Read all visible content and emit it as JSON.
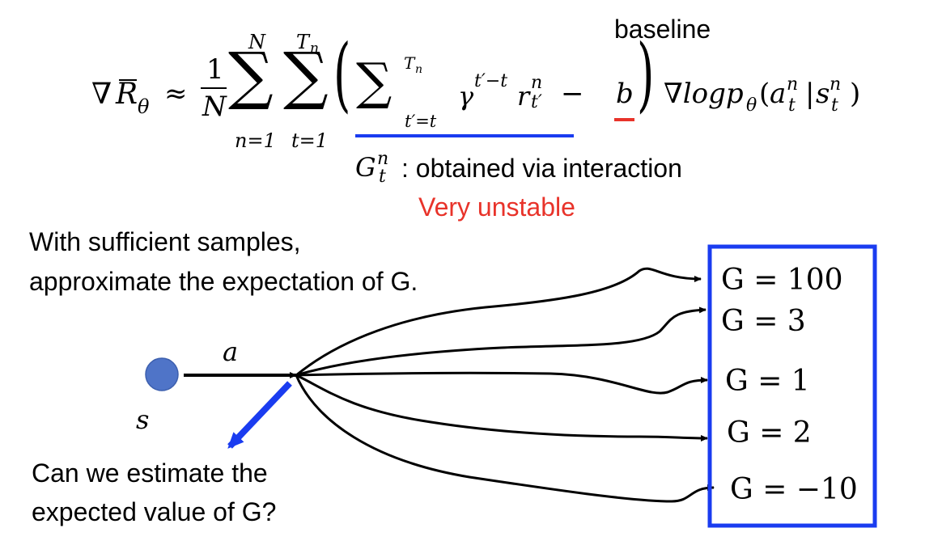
{
  "formula": {
    "nabla": "∇",
    "R": "R",
    "theta": "θ",
    "approx": "≈",
    "frac_num": "1",
    "frac_den": "N",
    "sum1_top": "N",
    "sum1_bottom": "n=1",
    "sum_sign": "∑",
    "sum2_top": "T",
    "sum2_top_sub": "n",
    "sum2_bottom": "t=1",
    "lparen": "(",
    "rparen": ")",
    "sum3_top": "T",
    "sum3_top_sub": "n",
    "sum3_bottom": "t′=t",
    "gamma": "γ",
    "gamma_exp": "t′−t",
    "r": "r",
    "r_sup": "n",
    "r_sub": "t′",
    "minus": "−",
    "b": "b",
    "grad_log": "∇logp",
    "p_sub": "θ",
    "open": "(",
    "a": "a",
    "a_sup": "n",
    "a_sub": "t",
    "bar": "|",
    "s": "s",
    "s_sup": "n",
    "s_sub": "t",
    "close": ")"
  },
  "baseline_label": "baseline",
  "g_annotation": {
    "G": "G",
    "sup": "n",
    "sub": "t",
    "text": ": obtained via interaction"
  },
  "unstable_text": "Very unstable",
  "sufficient_text": [
    "With sufficient samples,",
    "approximate the expectation of G."
  ],
  "question_text": [
    "Can we estimate the",
    "expected value of G?"
  ],
  "state_label": "s",
  "action_label": "a",
  "returns": [
    "G = 100",
    "G = 3",
    "G = 1",
    "G = 2",
    "G = −10"
  ],
  "colors": {
    "accent_red": "#e8332a",
    "accent_blue": "#1a3cf0",
    "state_node": "#4f74c8"
  }
}
